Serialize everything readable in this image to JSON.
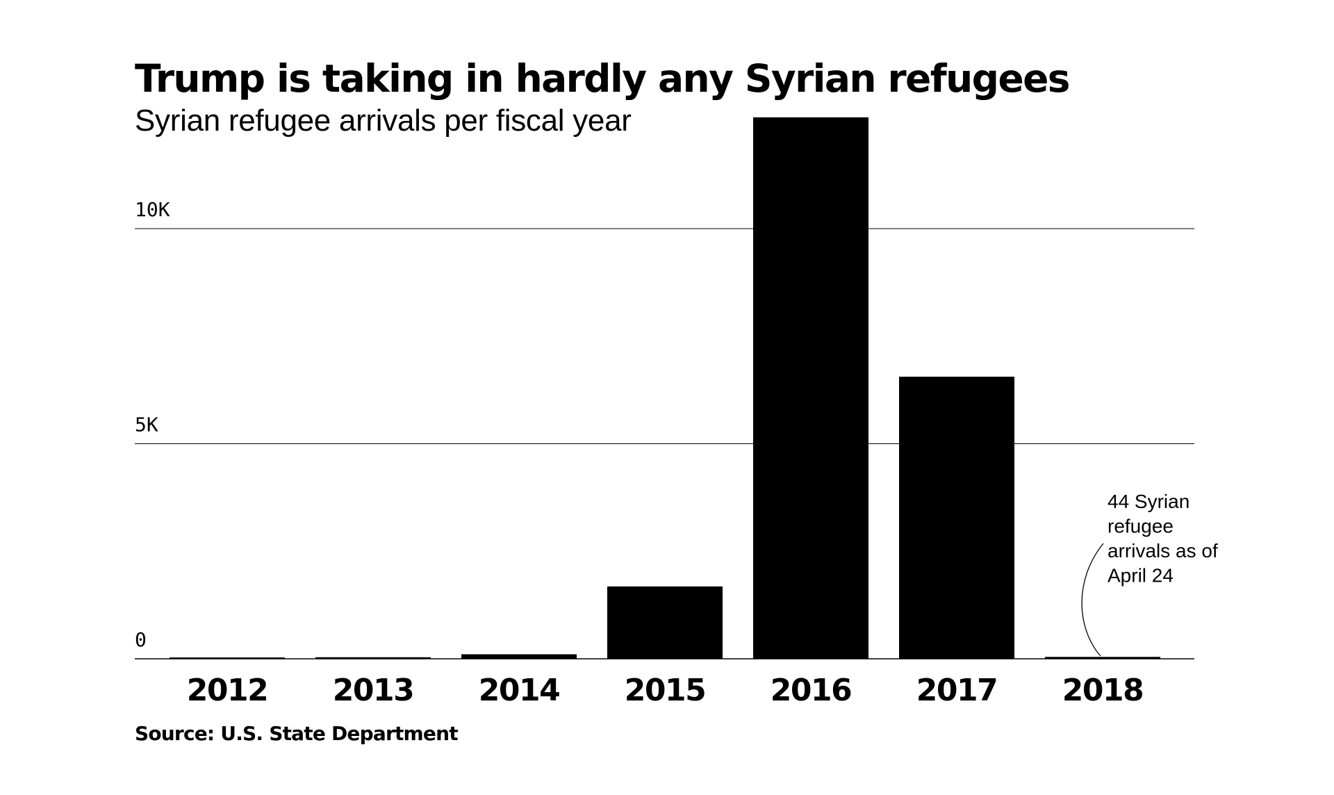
{
  "chart_data": {
    "type": "bar",
    "title": "Trump is taking in hardly any Syrian refugees",
    "subtitle": "Syrian refugee arrivals per fiscal year",
    "source": "Source: U.S. State Department",
    "categories": [
      "2012",
      "2013",
      "2014",
      "2015",
      "2016",
      "2017",
      "2018"
    ],
    "values": [
      31,
      36,
      105,
      1682,
      12587,
      6557,
      44
    ],
    "ylim": [
      0,
      12600
    ],
    "yticks": [
      {
        "value": 0,
        "label": "0"
      },
      {
        "value": 5000,
        "label": "5K"
      },
      {
        "value": 10000,
        "label": "10K"
      }
    ],
    "grid": true,
    "bar_color": "#000000",
    "annotation": {
      "category": "2018",
      "lines": [
        "44 Syrian",
        "refugee",
        "arrivals as of",
        "April 24"
      ]
    }
  }
}
